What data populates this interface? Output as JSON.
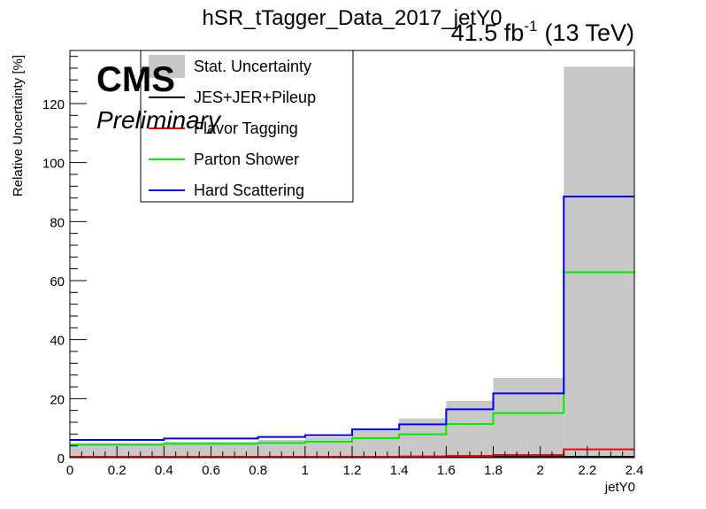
{
  "chart_data": {
    "type": "histogram",
    "title": "hSR_tTagger_Data_2017_jetY0",
    "lumi_label": "41.5 fb",
    "lumi_exponent": "-1",
    "energy_label": "(13 TeV)",
    "cms_label": "CMS",
    "preliminary_label": "Preliminary",
    "xlabel": "jetY0",
    "ylabel": "Relative Uncertainty [%]",
    "xlim": [
      0,
      2.4
    ],
    "ylim": [
      0,
      138
    ],
    "x_ticks": [
      "0",
      "0.2",
      "0.4",
      "0.6",
      "0.8",
      "1",
      "1.2",
      "1.4",
      "1.6",
      "1.8",
      "2",
      "2.2",
      "2.4"
    ],
    "y_ticks": [
      "0",
      "20",
      "40",
      "60",
      "80",
      "100",
      "120"
    ],
    "bin_edges": [
      0,
      0.4,
      0.8,
      1.0,
      1.2,
      1.4,
      1.6,
      1.8,
      2.1,
      2.4
    ],
    "series": [
      {
        "name": "Stat. Uncertainty",
        "style": "fill",
        "color": "#c8c8c8",
        "values": [
          5.0,
          5.4,
          6.0,
          6.9,
          9.3,
          13.3,
          19.2,
          27.0,
          132.5
        ]
      },
      {
        "name": "JES+JER+Pileup",
        "style": "line",
        "color": "#000000",
        "values": [
          0.0,
          0.0,
          0.0,
          0.0,
          0.0,
          0.0,
          0.0,
          0.0,
          0.0
        ]
      },
      {
        "name": "Flavor Tagging",
        "style": "line",
        "color": "#ff0000",
        "values": [
          0.2,
          0.2,
          0.2,
          0.3,
          0.3,
          0.4,
          0.6,
          0.9,
          2.8
        ]
      },
      {
        "name": "Parton Shower",
        "style": "line",
        "color": "#00ee00",
        "values": [
          4.4,
          4.7,
          5.0,
          5.4,
          6.6,
          7.9,
          11.4,
          15.1,
          62.8
        ]
      },
      {
        "name": "Hard Scattering",
        "style": "line",
        "color": "#0000ff",
        "values": [
          6.0,
          6.5,
          7.0,
          7.6,
          9.6,
          11.3,
          16.4,
          21.8,
          88.5
        ]
      }
    ],
    "legend_position": "top-left"
  }
}
